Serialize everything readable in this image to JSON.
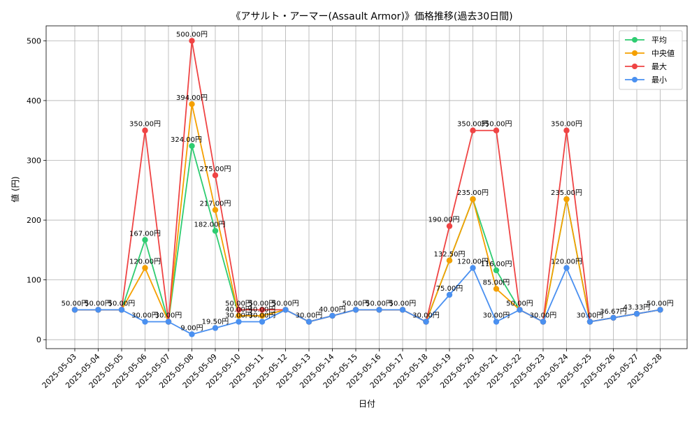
{
  "chart_data": {
    "type": "line",
    "title": "《アサルト・アーマー(Assault Armor)》価格推移(過去30日間)",
    "xlabel": "日付",
    "ylabel": "値 (円)",
    "ylim": [
      -15,
      525
    ],
    "yticks": [
      0,
      100,
      200,
      300,
      400,
      500
    ],
    "grid": true,
    "legend_position": "top-right",
    "categories": [
      "2025-05-03",
      "2025-05-04",
      "2025-05-05",
      "2025-05-06",
      "2025-05-07",
      "2025-05-08",
      "2025-05-09",
      "2025-05-10",
      "2025-05-11",
      "2025-05-12",
      "2025-05-13",
      "2025-05-14",
      "2025-05-15",
      "2025-05-16",
      "2025-05-17",
      "2025-05-18",
      "2025-05-19",
      "2025-05-20",
      "2025-05-21",
      "2025-05-22",
      "2025-05-23",
      "2025-05-24",
      "2025-05-25",
      "2025-05-26",
      "2025-05-27",
      "2025-05-28"
    ],
    "series": [
      {
        "name": "平均",
        "color": "#2ecc71",
        "values": [
          50,
          50,
          50,
          167,
          30,
          324,
          182,
          40,
          40,
          50,
          30,
          40,
          50,
          50,
          50,
          30,
          132.5,
          235,
          116,
          50,
          30,
          235,
          30,
          36.67,
          43.33,
          50
        ]
      },
      {
        "name": "中央値",
        "color": "#f5a000",
        "values": [
          50,
          50,
          50,
          120,
          30,
          394,
          217,
          40,
          40,
          50,
          30,
          40,
          50,
          50,
          50,
          30,
          132.5,
          235,
          85,
          50,
          30,
          235,
          30,
          36.67,
          43.33,
          50
        ]
      },
      {
        "name": "最大",
        "color": "#ef4444",
        "values": [
          50,
          50,
          50,
          350,
          30,
          500,
          275,
          50,
          50,
          50,
          30,
          40,
          50,
          50,
          50,
          30,
          190,
          350,
          350,
          50,
          30,
          350,
          30,
          36.67,
          43.33,
          50
        ]
      },
      {
        "name": "最小",
        "color": "#4a90f0",
        "values": [
          50,
          50,
          50,
          30,
          30,
          9,
          19.5,
          30,
          30,
          50,
          30,
          40,
          50,
          50,
          50,
          30,
          75,
          120,
          30,
          50,
          30,
          120,
          30,
          36.67,
          43.33,
          50
        ]
      }
    ],
    "data_labels": [
      "50.00円",
      "50.00円",
      "50.00円",
      "350.00円",
      "167.00円",
      "120.00円",
      "30.00円",
      "30.00円",
      "500.00円",
      "394.00円",
      "324.00円",
      "9.00円",
      "275.00円",
      "217.00円",
      "182.00円",
      "19.50円",
      "50.00円",
      "40.00円",
      "30.00円",
      "50.00円",
      "40.00円",
      "30.00円",
      "50.00円",
      "30.00円",
      "40.00円",
      "50.00円",
      "50.00円",
      "50.00円",
      "30.00円",
      "190.00円",
      "132.50円",
      "75.00円",
      "350.00円",
      "235.00円",
      "120.00円",
      "350.00円",
      "116.00円",
      "85.00円",
      "30.00円",
      "50.00円",
      "30.00円",
      "350.00円",
      "235.00円",
      "120.00円",
      "30.00円",
      "36.67円",
      "43.33円",
      "50.00円"
    ]
  }
}
